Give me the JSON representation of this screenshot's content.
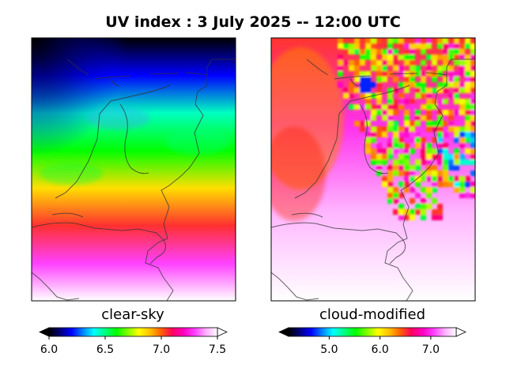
{
  "chart_data": [
    {
      "type": "heatmap",
      "panel": "left",
      "title": "UV index :  3 July 2025  --  12:00 UTC",
      "label": "clear-sky",
      "colorbar": {
        "range": [
          6.0,
          7.5
        ],
        "ticks": [
          6.0,
          6.5,
          7.0,
          7.5
        ],
        "tick_labels": [
          "6.0",
          "6.5",
          "7.0",
          "7.5"
        ],
        "extend": "both"
      },
      "field_profile": {
        "north_to_south_values": [
          6.0,
          6.2,
          6.45,
          6.6,
          6.85,
          7.05,
          7.3,
          7.5
        ],
        "min_corner": "north-west",
        "max_edge": "south"
      }
    },
    {
      "type": "heatmap",
      "panel": "right",
      "label": "cloud-modified",
      "colorbar": {
        "range": [
          4.2,
          7.5
        ],
        "ticks": [
          5.0,
          6.0,
          7.0
        ],
        "tick_labels": [
          "5.0",
          "6.0",
          "7.0"
        ],
        "extend": "both"
      },
      "field_profile": {
        "clear_region_values": [
          6.5,
          7.0,
          7.3,
          7.5
        ],
        "cloud_band_min": 4.7,
        "cloud_band_location": "north-east"
      }
    }
  ],
  "colormap": {
    "name": "gist_ncar-like",
    "stops": [
      "#000000",
      "#00007a",
      "#0000ff",
      "#0080ff",
      "#00ffff",
      "#00ff80",
      "#00ff00",
      "#80ff00",
      "#ffff00",
      "#ffbf00",
      "#ff6000",
      "#ff0060",
      "#ff00c0",
      "#ff40ff",
      "#ffb0ff",
      "#ffffff"
    ],
    "under": "#000000",
    "over": "#ffffff"
  }
}
